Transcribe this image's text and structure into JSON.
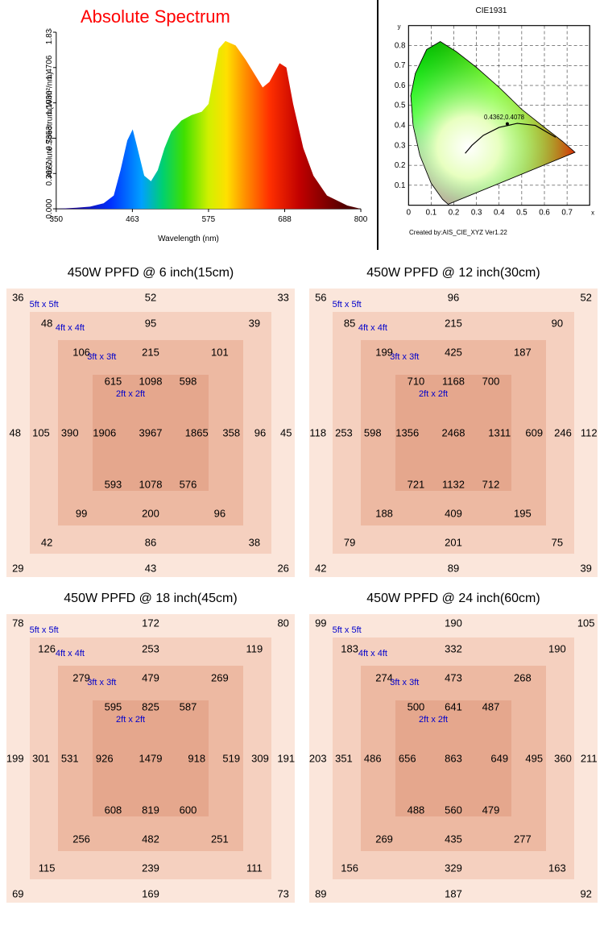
{
  "spectrum": {
    "title": "Absolute Spectrum",
    "yaxis_label": "Absolute Spectrum(W/m²/nm)",
    "xaxis_label": "Wavelength (nm)",
    "xticks": [
      "350",
      "463",
      "575",
      "688",
      "800"
    ],
    "yticks": [
      "0.000",
      "0.3677",
      "0.7353",
      "1.1030",
      "1.4706",
      "1.8383"
    ],
    "range_x": [
      350,
      800
    ],
    "curve": [
      [
        350,
        0
      ],
      [
        380,
        0.01
      ],
      [
        400,
        0.02
      ],
      [
        420,
        0.05
      ],
      [
        435,
        0.12
      ],
      [
        445,
        0.35
      ],
      [
        455,
        0.62
      ],
      [
        463,
        0.72
      ],
      [
        470,
        0.55
      ],
      [
        480,
        0.3
      ],
      [
        490,
        0.25
      ],
      [
        500,
        0.35
      ],
      [
        510,
        0.55
      ],
      [
        520,
        0.7
      ],
      [
        535,
        0.8
      ],
      [
        550,
        0.85
      ],
      [
        565,
        0.88
      ],
      [
        575,
        0.95
      ],
      [
        590,
        1.45
      ],
      [
        600,
        1.52
      ],
      [
        615,
        1.48
      ],
      [
        630,
        1.35
      ],
      [
        645,
        1.2
      ],
      [
        655,
        1.1
      ],
      [
        665,
        1.15
      ],
      [
        680,
        1.32
      ],
      [
        690,
        1.28
      ],
      [
        700,
        0.95
      ],
      [
        715,
        0.55
      ],
      [
        730,
        0.3
      ],
      [
        750,
        0.12
      ],
      [
        780,
        0.03
      ],
      [
        800,
        0.0
      ]
    ]
  },
  "cie": {
    "title": "CIE1931",
    "point_label": "0.4362,0.4078",
    "footer": "Created by:AIS_CIE_XYZ Ver1.22"
  },
  "colors": {
    "ring5": "#fbe6db",
    "ring4": "#f5d0bf",
    "ring3": "#edb9a2",
    "ring2": "#e5a78d",
    "label_blue": "#0000cc"
  },
  "ft_labels": [
    "5ft x 5ft",
    "4ft x 4ft",
    "3ft x 3ft",
    "2ft x 2ft"
  ],
  "ppfd": [
    {
      "title": "450W PPFD @ 6 inch(15cm)",
      "r5": {
        "tl": "36",
        "tc": "52",
        "tr": "33",
        "ml": "48",
        "mr": "45",
        "bl": "29",
        "bc": "43",
        "br": "26"
      },
      "r4": {
        "tl": "48",
        "tc": "95",
        "tr": "39",
        "ml": "105",
        "mr": "96",
        "bl": "42",
        "bc": "86",
        "br": "38"
      },
      "r3": {
        "tl": "106",
        "tc": "215",
        "tr": "101",
        "ml": "390",
        "mr": "358",
        "bl": "99",
        "bc": "200",
        "br": "96"
      },
      "r2": {
        "tl": "615",
        "tc": "1098",
        "tr": "598",
        "ml": "1906",
        "mc": "3967",
        "mr": "1865",
        "bl": "593",
        "bc": "1078",
        "br": "576"
      }
    },
    {
      "title": "450W PPFD @ 12 inch(30cm)",
      "r5": {
        "tl": "56",
        "tc": "96",
        "tr": "52",
        "ml": "118",
        "mr": "112",
        "bl": "42",
        "bc": "89",
        "br": "39"
      },
      "r4": {
        "tl": "85",
        "tc": "215",
        "tr": "90",
        "ml": "253",
        "mr": "246",
        "bl": "79",
        "bc": "201",
        "br": "75"
      },
      "r3": {
        "tl": "199",
        "tc": "425",
        "tr": "187",
        "ml": "598",
        "mr": "609",
        "bl": "188",
        "bc": "409",
        "br": "195"
      },
      "r2": {
        "tl": "710",
        "tc": "1168",
        "tr": "700",
        "ml": "1356",
        "mc": "2468",
        "mr": "1311",
        "bl": "721",
        "bc": "1132",
        "br": "712"
      }
    },
    {
      "title": "450W PPFD @ 18 inch(45cm)",
      "r5": {
        "tl": "78",
        "tc": "172",
        "tr": "80",
        "ml": "199",
        "mr": "191",
        "bl": "69",
        "bc": "169",
        "br": "73"
      },
      "r4": {
        "tl": "126",
        "tc": "253",
        "tr": "119",
        "ml": "301",
        "mr": "309",
        "bl": "115",
        "bc": "239",
        "br": "111"
      },
      "r3": {
        "tl": "279",
        "tc": "479",
        "tr": "269",
        "ml": "531",
        "mr": "519",
        "bl": "256",
        "bc": "482",
        "br": "251"
      },
      "r2": {
        "tl": "595",
        "tc": "825",
        "tr": "587",
        "ml": "926",
        "mc": "1479",
        "mr": "918",
        "bl": "608",
        "bc": "819",
        "br": "600"
      }
    },
    {
      "title": "450W PPFD @ 24 inch(60cm)",
      "r5": {
        "tl": "99",
        "tc": "190",
        "tr": "105",
        "ml": "203",
        "mr": "211",
        "bl": "89",
        "bc": "187",
        "br": "92"
      },
      "r4": {
        "tl": "183",
        "tc": "332",
        "tr": "190",
        "ml": "351",
        "mr": "360",
        "bl": "156",
        "bc": "329",
        "br": "163"
      },
      "r3": {
        "tl": "274",
        "tc": "473",
        "tr": "268",
        "ml": "486",
        "mr": "495",
        "bl": "269",
        "bc": "435",
        "br": "277"
      },
      "r2": {
        "tl": "500",
        "tc": "641",
        "tr": "487",
        "ml": "656",
        "mc": "863",
        "mr": "649",
        "bl": "488",
        "bc": "560",
        "br": "479"
      }
    }
  ]
}
